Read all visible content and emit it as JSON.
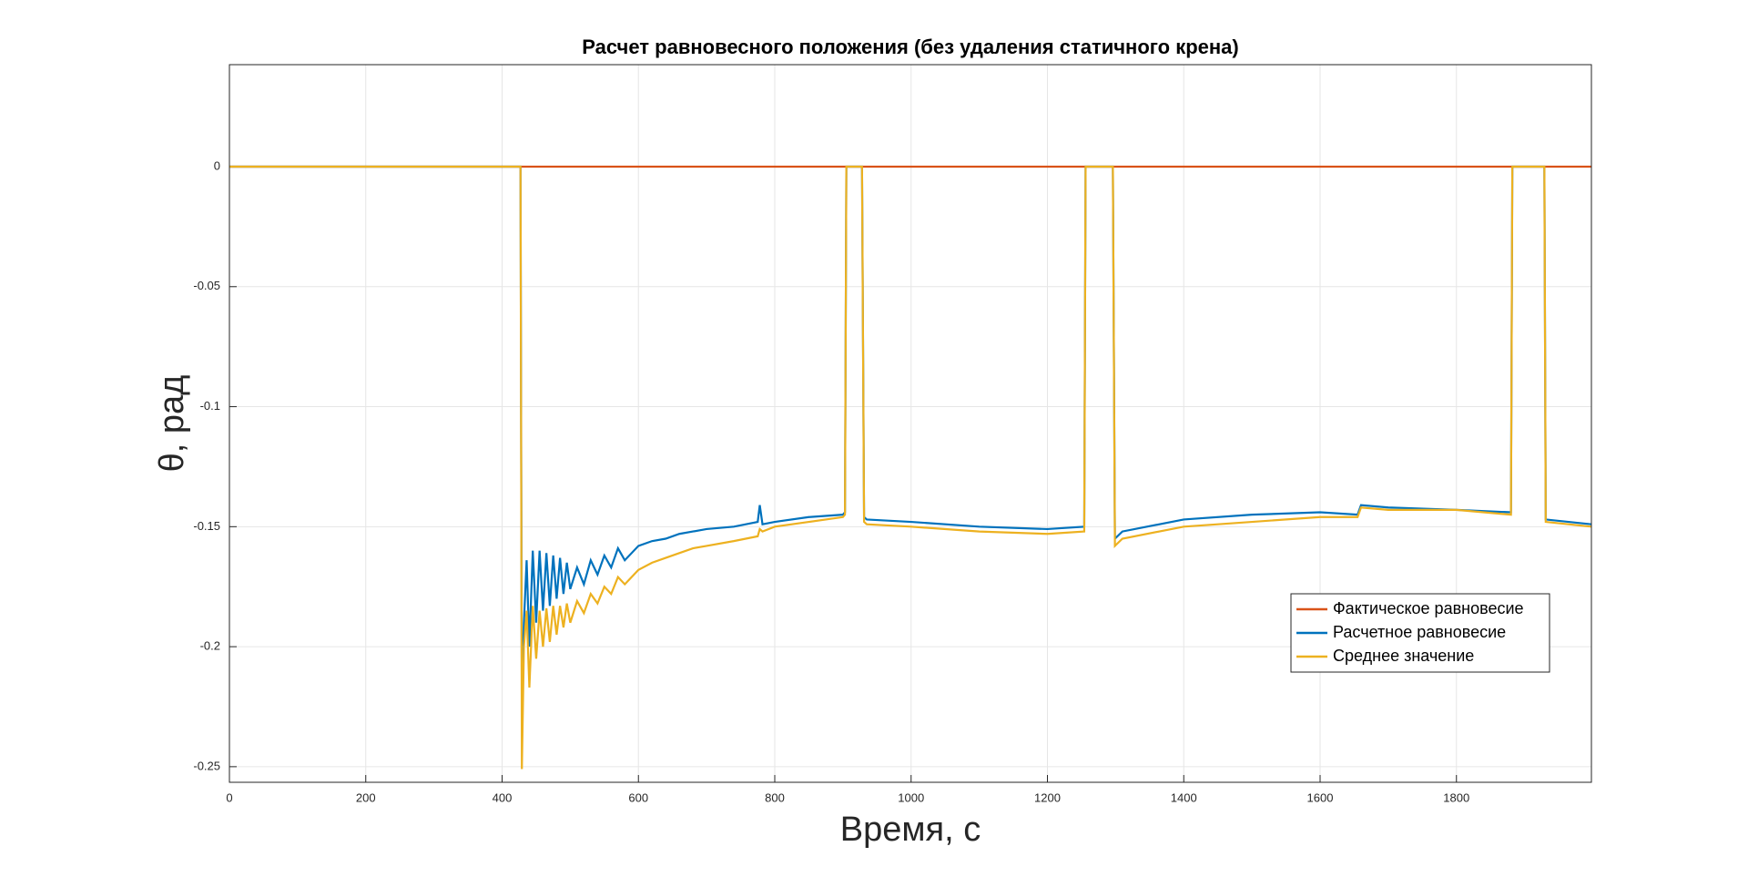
{
  "chart_data": {
    "type": "line",
    "title": "Расчет равновесного положения (без удаления статичного крена)",
    "xlabel": "Время, с",
    "ylabel": "θ, рад",
    "x": [
      0,
      427,
      429,
      432,
      436,
      440,
      445,
      450,
      455,
      460,
      465,
      470,
      475,
      480,
      485,
      490,
      495,
      500,
      510,
      520,
      530,
      540,
      550,
      560,
      570,
      580,
      600,
      620,
      640,
      660,
      680,
      700,
      740,
      775,
      778,
      782,
      800,
      850,
      900,
      903,
      905,
      928,
      931,
      935,
      1000,
      1100,
      1200,
      1254,
      1256,
      1296,
      1299,
      1310,
      1400,
      1500,
      1600,
      1655,
      1660,
      1700,
      1800,
      1880,
      1882,
      1929,
      1931,
      1998
    ],
    "series": [
      {
        "name": "Фактическое равновесие",
        "color": "#d95319",
        "values": [
          0,
          0,
          0,
          0,
          0,
          0,
          0,
          0,
          0,
          0,
          0,
          0,
          0,
          0,
          0,
          0,
          0,
          0,
          0,
          0,
          0,
          0,
          0,
          0,
          0,
          0,
          0,
          0,
          0,
          0,
          0,
          0,
          0,
          0,
          0,
          0,
          0,
          0,
          0,
          0,
          0,
          0,
          0,
          0,
          0,
          0,
          0,
          0,
          0,
          0,
          0,
          0,
          0,
          0,
          0,
          0,
          0,
          0,
          0,
          0,
          0,
          0,
          0,
          0
        ]
      },
      {
        "name": "Расчетное равновесие",
        "color": "#0072bd",
        "values": [
          0,
          0,
          -0.229,
          -0.19,
          -0.164,
          -0.2,
          -0.16,
          -0.19,
          -0.16,
          -0.185,
          -0.161,
          -0.183,
          -0.162,
          -0.18,
          -0.163,
          -0.178,
          -0.165,
          -0.176,
          -0.167,
          -0.174,
          -0.164,
          -0.17,
          -0.162,
          -0.167,
          -0.159,
          -0.164,
          -0.158,
          -0.156,
          -0.155,
          -0.153,
          -0.152,
          -0.151,
          -0.15,
          -0.148,
          -0.141,
          -0.149,
          -0.148,
          -0.146,
          -0.145,
          -0.144,
          0,
          0,
          -0.146,
          -0.147,
          -0.148,
          -0.15,
          -0.151,
          -0.15,
          0,
          0,
          -0.155,
          -0.152,
          -0.147,
          -0.145,
          -0.144,
          -0.145,
          -0.141,
          -0.142,
          -0.143,
          -0.144,
          0,
          0,
          -0.147,
          -0.149
        ]
      },
      {
        "name": "Среднее значение",
        "color": "#edb120",
        "values": [
          0,
          0,
          -0.251,
          -0.2,
          -0.185,
          -0.217,
          -0.183,
          -0.205,
          -0.185,
          -0.2,
          -0.184,
          -0.198,
          -0.183,
          -0.195,
          -0.183,
          -0.192,
          -0.182,
          -0.19,
          -0.181,
          -0.186,
          -0.178,
          -0.182,
          -0.175,
          -0.178,
          -0.171,
          -0.174,
          -0.168,
          -0.165,
          -0.163,
          -0.161,
          -0.159,
          -0.158,
          -0.156,
          -0.154,
          -0.151,
          -0.152,
          -0.15,
          -0.148,
          -0.146,
          -0.145,
          0,
          0,
          -0.148,
          -0.149,
          -0.15,
          -0.152,
          -0.153,
          -0.152,
          0,
          0,
          -0.158,
          -0.155,
          -0.15,
          -0.148,
          -0.146,
          -0.146,
          -0.142,
          -0.143,
          -0.143,
          -0.145,
          0,
          0,
          -0.148,
          -0.15
        ]
      }
    ],
    "xlim": [
      0,
      1998
    ],
    "ylim": [
      -0.2565,
      0.0425
    ],
    "xticks": [
      0,
      200,
      400,
      600,
      800,
      1000,
      1200,
      1400,
      1600,
      1800
    ],
    "yticks": [
      -0.25,
      -0.2,
      -0.15,
      -0.1,
      -0.05,
      0
    ],
    "grid": true,
    "legend": "lower right"
  }
}
